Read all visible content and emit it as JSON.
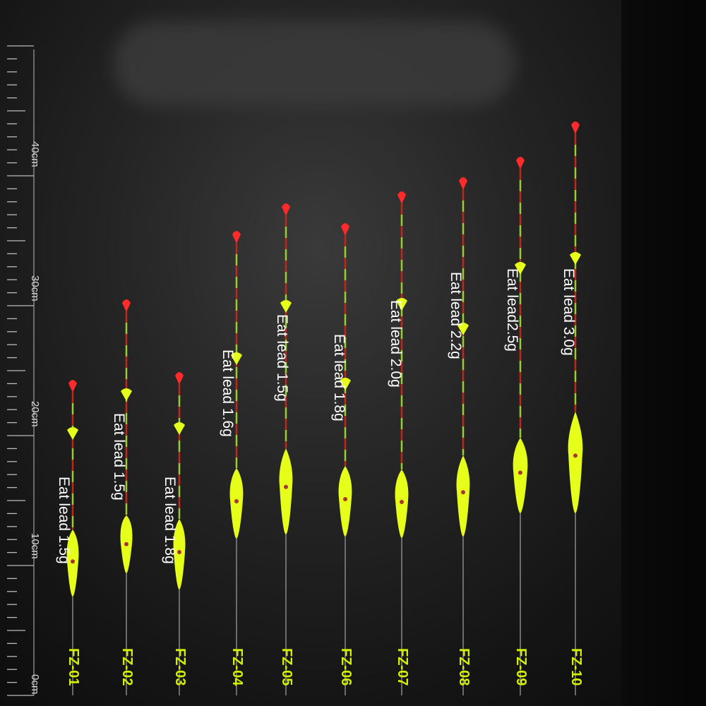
{
  "ruler": {
    "labels": [
      "0cm",
      "10cm",
      "20cm",
      "30cm",
      "40cm"
    ],
    "unit": "cm"
  },
  "floats": [
    {
      "code": "FZ-01",
      "lead": "Eat lead 1.5g"
    },
    {
      "code": "FZ-02",
      "lead": "Eat lead 1.5g"
    },
    {
      "code": "FZ-03",
      "lead": "Eat lead 1.8g"
    },
    {
      "code": "FZ-04",
      "lead": "Eat lead 1.6g"
    },
    {
      "code": "FZ-05",
      "lead": "Eat lead 1.5g"
    },
    {
      "code": "FZ-06",
      "lead": "Eat lead 1.8g"
    },
    {
      "code": "FZ-07",
      "lead": "Eat lead 2.0g"
    },
    {
      "code": "FZ-08",
      "lead": "Eat lead 2.2g"
    },
    {
      "code": "FZ-09",
      "lead": "Eat lead2.5g"
    },
    {
      "code": "FZ-10",
      "lead": "Eat lead 3.0g"
    }
  ],
  "colors": {
    "tip": "#ff2a2a",
    "body": "#e6ff1a",
    "segment_red": "#c0271c",
    "segment_green": "#9acd32",
    "code_text": "#d4f000"
  }
}
